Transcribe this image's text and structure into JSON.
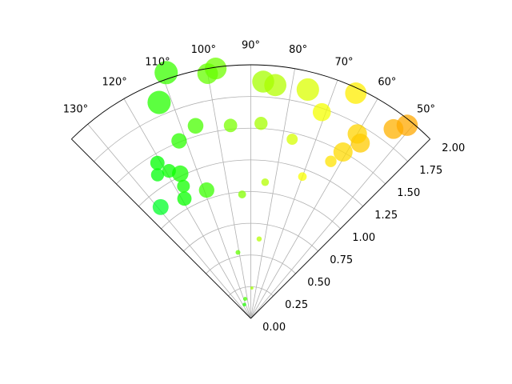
{
  "chart_data": {
    "type": "scatter",
    "projection": "polar",
    "title": "",
    "theta_range_deg": [
      45,
      135
    ],
    "r_range": [
      0,
      2.0
    ],
    "grid": true,
    "colormap": "hsv",
    "theta_tick_labels": [
      {
        "deg": 50,
        "label": "50°"
      },
      {
        "deg": 60,
        "label": "60°"
      },
      {
        "deg": 70,
        "label": "70°"
      },
      {
        "deg": 80,
        "label": "80°"
      },
      {
        "deg": 90,
        "label": "90°"
      },
      {
        "deg": 100,
        "label": "100°"
      },
      {
        "deg": 110,
        "label": "110°"
      },
      {
        "deg": 120,
        "label": "120°"
      },
      {
        "deg": 130,
        "label": "130°"
      }
    ],
    "r_tick_labels": [
      {
        "r": 0.0,
        "label": "0.00"
      },
      {
        "r": 0.25,
        "label": "0.25"
      },
      {
        "r": 0.5,
        "label": "0.50"
      },
      {
        "r": 0.75,
        "label": "0.75"
      },
      {
        "r": 1.0,
        "label": "1.00"
      },
      {
        "r": 1.25,
        "label": "1.25"
      },
      {
        "r": 1.5,
        "label": "1.50"
      },
      {
        "r": 1.75,
        "label": "1.75"
      },
      {
        "r": 2.0,
        "label": "2.00"
      }
    ],
    "points": [
      {
        "theta": 88,
        "r": 0.24,
        "area": 6
      },
      {
        "theta": 115,
        "r": 0.12,
        "area": 8
      },
      {
        "theta": 106,
        "r": 0.16,
        "area": 10
      },
      {
        "theta": 101,
        "r": 0.53,
        "area": 14
      },
      {
        "theta": 84,
        "r": 0.63,
        "area": 16
      },
      {
        "theta": 94,
        "r": 0.98,
        "area": 38
      },
      {
        "theta": 84,
        "r": 1.08,
        "area": 36
      },
      {
        "theta": 70,
        "r": 1.19,
        "area": 45
      },
      {
        "theta": 63,
        "r": 1.39,
        "area": 80
      },
      {
        "theta": 77,
        "r": 1.45,
        "area": 75
      },
      {
        "theta": 87,
        "r": 1.54,
        "area": 105
      },
      {
        "theta": 96,
        "r": 1.53,
        "area": 110
      },
      {
        "theta": 116,
        "r": 1.27,
        "area": 165
      },
      {
        "theta": 119,
        "r": 1.08,
        "area": 125
      },
      {
        "theta": 117,
        "r": 1.17,
        "area": 100
      },
      {
        "theta": 112,
        "r": 1.51,
        "area": 145
      },
      {
        "theta": 106,
        "r": 1.58,
        "area": 150
      },
      {
        "theta": 119,
        "r": 1.33,
        "area": 115
      },
      {
        "theta": 109,
        "r": 1.07,
        "area": 145
      },
      {
        "theta": 123,
        "r": 1.35,
        "area": 105
      },
      {
        "theta": 129,
        "r": 1.13,
        "area": 155
      },
      {
        "theta": 121,
        "r": 1.43,
        "area": 125
      },
      {
        "theta": 60,
        "r": 1.68,
        "area": 230
      },
      {
        "theta": 61,
        "r": 1.5,
        "area": 225
      },
      {
        "theta": 71,
        "r": 1.72,
        "area": 200
      },
      {
        "theta": 53,
        "r": 1.87,
        "area": 240
      },
      {
        "theta": 51,
        "r": 1.96,
        "area": 275
      },
      {
        "theta": 58,
        "r": 1.63,
        "area": 220
      },
      {
        "theta": 76,
        "r": 1.86,
        "area": 310
      },
      {
        "theta": 65,
        "r": 1.96,
        "area": 280
      },
      {
        "theta": 84,
        "r": 1.85,
        "area": 300
      },
      {
        "theta": 87,
        "r": 1.87,
        "area": 295
      },
      {
        "theta": 98,
        "r": 1.99,
        "area": 290
      },
      {
        "theta": 100,
        "r": 1.96,
        "area": 260
      },
      {
        "theta": 113,
        "r": 1.85,
        "area": 330
      },
      {
        "theta": 109,
        "r": 2.05,
        "area": 330
      }
    ]
  }
}
